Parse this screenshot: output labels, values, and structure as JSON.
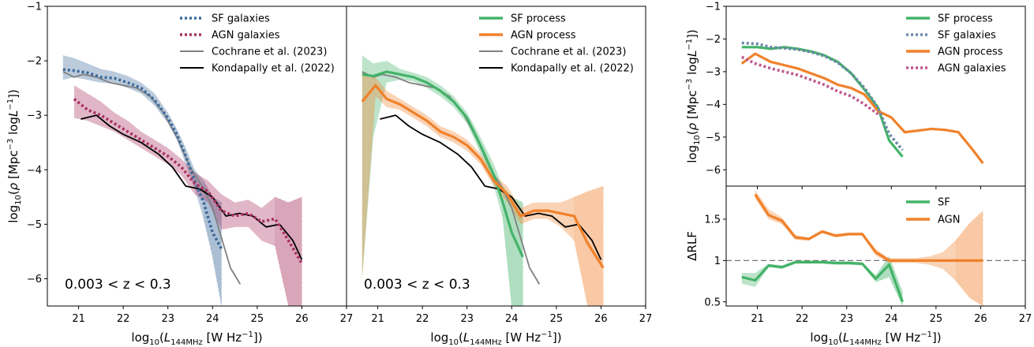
{
  "chart_data": [
    {
      "type": "line",
      "panel": "left",
      "xlabel": "log10(L144MHz [W Hz^-1])",
      "ylabel": "log10(ρ [Mpc^-3 logL^-1])",
      "xlim": [
        20.3,
        27
      ],
      "ylim": [
        -6.5,
        -1
      ],
      "xticks": [
        21,
        22,
        23,
        24,
        25,
        26,
        27
      ],
      "yticks": [
        -6,
        -5,
        -4,
        -3,
        -2,
        -1
      ],
      "annotation": "0.003 < z < 0.3",
      "legend_position": "top-right",
      "series": [
        {
          "name": "SF galaxies",
          "style": "dotted",
          "color": "#3d6a9b",
          "x": [
            20.65,
            20.9,
            21.2,
            21.5,
            21.8,
            22.1,
            22.4,
            22.7,
            23.0,
            23.2,
            23.4,
            23.6,
            23.8,
            24.0,
            24.2
          ],
          "y": [
            -2.16,
            -2.18,
            -2.22,
            -2.3,
            -2.32,
            -2.4,
            -2.5,
            -2.72,
            -3.05,
            -3.35,
            -3.75,
            -4.2,
            -4.6,
            -5.15,
            -5.45
          ],
          "band_upper": [
            -1.9,
            -1.95,
            -2.05,
            -2.15,
            -2.2,
            -2.28,
            -2.4,
            -2.6,
            -2.95,
            -3.25,
            -3.6,
            -4.0,
            -4.2,
            -4.5,
            -4.6
          ],
          "band_lower": [
            -2.35,
            -2.3,
            -2.35,
            -2.4,
            -2.42,
            -2.5,
            -2.6,
            -2.82,
            -3.15,
            -3.45,
            -3.9,
            -4.35,
            -4.9,
            -5.6,
            -6.5
          ]
        },
        {
          "name": "AGN galaxies",
          "style": "dotted",
          "color": "#a8325e",
          "x": [
            20.9,
            21.2,
            21.5,
            21.8,
            22.1,
            22.4,
            22.7,
            23.0,
            23.3,
            23.6,
            23.9,
            24.2,
            24.5,
            24.8,
            25.1,
            25.4,
            25.7,
            26.0
          ],
          "y": [
            -2.7,
            -2.9,
            -3.0,
            -3.15,
            -3.3,
            -3.45,
            -3.6,
            -3.75,
            -3.95,
            -4.25,
            -4.4,
            -4.75,
            -4.85,
            -4.8,
            -4.95,
            -4.9,
            -5.3,
            -5.72
          ],
          "band_upper": [
            -2.45,
            -2.6,
            -2.75,
            -2.95,
            -3.1,
            -3.3,
            -3.45,
            -3.6,
            -3.8,
            -4.05,
            -4.2,
            -4.45,
            -4.6,
            -4.55,
            -4.7,
            -4.5,
            -4.6,
            -4.5
          ],
          "band_lower": [
            -3.05,
            -3.1,
            -3.2,
            -3.3,
            -3.45,
            -3.6,
            -3.75,
            -3.9,
            -4.1,
            -4.45,
            -4.6,
            -5.1,
            -5.05,
            -5.05,
            -5.3,
            -5.4,
            -6.5,
            -6.5
          ]
        },
        {
          "name": "Cochrane et al. (2023)",
          "style": "solid",
          "color": "#808080",
          "x": [
            20.65,
            20.9,
            21.1,
            21.4,
            21.7,
            22.0,
            22.3,
            22.6,
            22.9,
            23.2,
            23.5,
            23.8,
            24.0,
            24.2,
            24.4,
            24.62
          ],
          "y": [
            -2.2,
            -2.3,
            -2.25,
            -2.3,
            -2.4,
            -2.45,
            -2.5,
            -2.65,
            -2.95,
            -3.4,
            -3.95,
            -4.35,
            -4.7,
            -5.25,
            -5.8,
            -6.1
          ]
        },
        {
          "name": "Kondapally et al. (2022)",
          "style": "solid",
          "color": "#000000",
          "x": [
            21.05,
            21.4,
            21.7,
            22.0,
            22.4,
            22.8,
            23.1,
            23.4,
            23.7,
            24.0,
            24.3,
            24.6,
            24.9,
            25.2,
            25.5,
            25.8,
            26.0
          ],
          "y": [
            -3.07,
            -3.0,
            -3.2,
            -3.35,
            -3.5,
            -3.72,
            -3.95,
            -4.3,
            -4.35,
            -4.5,
            -4.85,
            -4.8,
            -4.85,
            -5.05,
            -5.0,
            -5.3,
            -5.65
          ]
        }
      ]
    },
    {
      "type": "line",
      "panel": "middle",
      "xlabel": "log10(L144MHz [W Hz^-1])",
      "xlim": [
        20.3,
        27
      ],
      "ylim": [
        -6.5,
        -1
      ],
      "xticks": [
        21,
        22,
        23,
        24,
        25,
        26,
        27
      ],
      "annotation": "0.003 < z < 0.3",
      "legend_position": "top-right",
      "series": [
        {
          "name": "SF process",
          "style": "solid",
          "color": "#43b369",
          "x": [
            20.65,
            20.9,
            21.2,
            21.5,
            21.8,
            22.1,
            22.4,
            22.7,
            23.0,
            23.3,
            23.6,
            23.8,
            24.0,
            24.25
          ],
          "y": [
            -2.25,
            -2.28,
            -2.2,
            -2.25,
            -2.3,
            -2.4,
            -2.55,
            -2.75,
            -3.05,
            -3.55,
            -4.1,
            -4.6,
            -5.15,
            -5.6
          ],
          "band_upper": [
            -1.9,
            -2.05,
            -2.0,
            -2.15,
            -2.22,
            -2.3,
            -2.45,
            -2.65,
            -2.95,
            -3.4,
            -3.9,
            -4.3,
            -4.5,
            -4.6
          ],
          "band_lower": [
            -6.0,
            -3.4,
            -2.4,
            -2.35,
            -2.38,
            -2.5,
            -2.65,
            -2.85,
            -3.15,
            -3.7,
            -4.3,
            -4.9,
            -6.5,
            -6.5
          ]
        },
        {
          "name": "AGN process",
          "style": "solid",
          "color": "#f0812a",
          "x": [
            20.65,
            20.95,
            21.2,
            21.5,
            21.8,
            22.1,
            22.4,
            22.7,
            23.0,
            23.3,
            23.6,
            23.9,
            24.2,
            24.5,
            24.8,
            25.1,
            25.4,
            25.7,
            26.05
          ],
          "y": [
            -2.75,
            -2.45,
            -2.7,
            -2.8,
            -2.95,
            -3.1,
            -3.3,
            -3.4,
            -3.55,
            -3.8,
            -4.2,
            -4.45,
            -4.85,
            -4.75,
            -4.75,
            -4.8,
            -4.85,
            -5.35,
            -5.8
          ],
          "band_upper": [
            -2.2,
            -2.3,
            -2.55,
            -2.7,
            -2.85,
            -3.0,
            -3.2,
            -3.3,
            -3.45,
            -3.7,
            -4.1,
            -4.3,
            -4.7,
            -4.6,
            -4.6,
            -4.6,
            -4.5,
            -4.4,
            -4.3
          ],
          "band_lower": [
            -6.0,
            -2.65,
            -2.85,
            -2.9,
            -3.05,
            -3.2,
            -3.4,
            -3.5,
            -3.65,
            -3.9,
            -4.3,
            -4.6,
            -5.0,
            -4.9,
            -4.9,
            -5.05,
            -5.3,
            -6.5,
            -6.5
          ]
        },
        {
          "name": "Cochrane et al. (2023)",
          "style": "solid",
          "color": "#808080",
          "x": [
            20.65,
            20.9,
            21.1,
            21.4,
            21.7,
            22.0,
            22.3,
            22.6,
            22.9,
            23.2,
            23.5,
            23.8,
            24.0,
            24.2,
            24.4,
            24.62
          ],
          "y": [
            -2.2,
            -2.3,
            -2.25,
            -2.3,
            -2.4,
            -2.45,
            -2.5,
            -2.65,
            -2.95,
            -3.4,
            -3.95,
            -4.35,
            -4.7,
            -5.25,
            -5.8,
            -6.1
          ]
        },
        {
          "name": "Kondapally et al. (2022)",
          "style": "solid",
          "color": "#000000",
          "x": [
            21.05,
            21.4,
            21.7,
            22.0,
            22.4,
            22.8,
            23.1,
            23.4,
            23.7,
            24.0,
            24.3,
            24.6,
            24.9,
            25.2,
            25.5,
            25.8,
            26.0
          ],
          "y": [
            -3.07,
            -3.0,
            -3.2,
            -3.35,
            -3.5,
            -3.72,
            -3.95,
            -4.3,
            -4.35,
            -4.5,
            -4.85,
            -4.8,
            -4.85,
            -5.05,
            -5.0,
            -5.3,
            -5.65
          ]
        }
      ]
    },
    {
      "type": "line",
      "panel": "right-top",
      "ylabel": "log10(ρ [Mpc^-3 logL^-1])",
      "xlim": [
        20.3,
        27
      ],
      "ylim": [
        -6.5,
        -1
      ],
      "yticks": [
        -6,
        -5,
        -4,
        -3,
        -2,
        -1
      ],
      "legend_position": "top-right",
      "series": [
        {
          "name": "SF process",
          "style": "solid",
          "color": "#43b369",
          "x": [
            20.65,
            21.0,
            21.3,
            21.6,
            21.9,
            22.2,
            22.5,
            22.8,
            23.1,
            23.4,
            23.7,
            23.95,
            24.25
          ],
          "y": [
            -2.25,
            -2.25,
            -2.3,
            -2.25,
            -2.3,
            -2.38,
            -2.5,
            -2.7,
            -3.05,
            -3.55,
            -4.1,
            -5.1,
            -5.6
          ]
        },
        {
          "name": "SF galaxies",
          "style": "dotted",
          "color": "#6b88a8",
          "x": [
            20.65,
            21.0,
            21.3,
            21.6,
            21.9,
            22.2,
            22.5,
            22.8,
            23.1,
            23.4,
            23.7,
            23.95,
            24.25
          ],
          "y": [
            -2.12,
            -2.15,
            -2.25,
            -2.28,
            -2.32,
            -2.4,
            -2.52,
            -2.72,
            -3.05,
            -3.5,
            -4.1,
            -4.9,
            -5.4
          ]
        },
        {
          "name": "AGN process",
          "style": "solid",
          "color": "#f0812a",
          "x": [
            20.65,
            20.95,
            21.3,
            21.6,
            21.9,
            22.2,
            22.5,
            22.8,
            23.1,
            23.4,
            23.7,
            24.0,
            24.3,
            24.6,
            24.9,
            25.2,
            25.5,
            25.8,
            26.05
          ],
          "y": [
            -2.75,
            -2.45,
            -2.7,
            -2.8,
            -2.9,
            -3.05,
            -3.2,
            -3.4,
            -3.5,
            -3.7,
            -4.2,
            -4.4,
            -4.85,
            -4.8,
            -4.75,
            -4.78,
            -4.85,
            -5.35,
            -5.8
          ]
        },
        {
          "name": "AGN galaxies",
          "style": "dotted",
          "color": "#c0588c",
          "x": [
            20.65,
            20.95,
            21.3,
            21.6,
            21.9,
            22.2,
            22.5,
            22.8,
            23.1,
            23.4,
            23.7
          ],
          "y": [
            -2.55,
            -2.75,
            -2.9,
            -3.0,
            -3.1,
            -3.25,
            -3.4,
            -3.6,
            -3.75,
            -4.0,
            -4.3
          ]
        }
      ]
    },
    {
      "type": "line",
      "panel": "right-bottom",
      "xlabel": "log10(L144MHz [W Hz^-1])",
      "ylabel": "ΔRLF",
      "xlim": [
        20.3,
        27
      ],
      "ylim": [
        0.45,
        1.9
      ],
      "xticks": [
        21,
        22,
        23,
        24,
        25,
        26,
        27
      ],
      "yticks": [
        0.5,
        1.0,
        1.5
      ],
      "reference_line": 1.0,
      "legend_position": "top-right",
      "series": [
        {
          "name": "SF",
          "style": "solid",
          "color": "#43b369",
          "x": [
            20.65,
            20.95,
            21.25,
            21.55,
            21.85,
            22.15,
            22.45,
            22.75,
            23.05,
            23.35,
            23.65,
            23.95,
            24.25
          ],
          "y": [
            0.8,
            0.76,
            0.94,
            0.92,
            0.98,
            0.98,
            0.98,
            0.97,
            0.97,
            0.96,
            0.78,
            0.95,
            0.5
          ],
          "band_upper": [
            0.85,
            0.85,
            0.96,
            0.94,
            1.0,
            1.0,
            1.0,
            0.99,
            0.99,
            0.98,
            0.82,
            1.05,
            0.62
          ],
          "band_lower": [
            0.72,
            0.68,
            0.92,
            0.9,
            0.96,
            0.96,
            0.96,
            0.95,
            0.95,
            0.94,
            0.74,
            0.8,
            0.45
          ]
        },
        {
          "name": "AGN",
          "style": "solid",
          "color": "#f0812a",
          "x": [
            20.95,
            21.25,
            21.55,
            21.85,
            22.15,
            22.45,
            22.75,
            23.05,
            23.35,
            23.65,
            23.95,
            24.25,
            24.55,
            24.85,
            25.15,
            25.45,
            25.75,
            26.05
          ],
          "y": [
            1.8,
            1.55,
            1.48,
            1.28,
            1.26,
            1.35,
            1.3,
            1.32,
            1.32,
            1.1,
            1.0,
            1.0,
            1.0,
            1.0,
            1.0,
            1.0,
            1.0,
            1.0
          ],
          "band_upper": [
            1.85,
            1.62,
            1.52,
            1.31,
            1.28,
            1.37,
            1.32,
            1.34,
            1.34,
            1.14,
            1.03,
            1.03,
            1.03,
            1.05,
            1.1,
            1.25,
            1.45,
            1.6
          ],
          "band_lower": [
            1.75,
            1.5,
            1.44,
            1.25,
            1.24,
            1.33,
            1.28,
            1.3,
            1.3,
            1.06,
            0.97,
            0.97,
            0.97,
            0.95,
            0.9,
            0.75,
            0.55,
            0.45
          ]
        }
      ]
    }
  ]
}
